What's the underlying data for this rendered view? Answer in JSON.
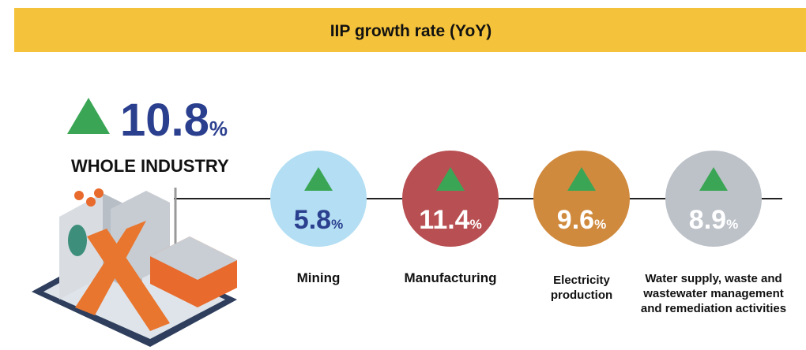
{
  "header": {
    "title": "IIP growth rate (YoY)"
  },
  "unit": "%",
  "total": {
    "value": 10.8,
    "label": "WHOLE INDUSTRY"
  },
  "sectors": [
    {
      "label": [
        "Mining"
      ],
      "value": 5.8,
      "color": "#b3def3",
      "text_color": "#2b3f8f"
    },
    {
      "label": [
        "Manufacturing"
      ],
      "value": 11.4,
      "color": "#b84f52",
      "text_color": "#ffffff"
    },
    {
      "label": [
        "Electricity",
        "production"
      ],
      "value": 9.6,
      "color": "#d08a3e",
      "text_color": "#ffffff"
    },
    {
      "label": [
        "Water supply, waste and",
        "wastewater management",
        "and remediation activities"
      ],
      "value": 8.9,
      "color": "#bdc2c9",
      "text_color": "#ffffff"
    }
  ]
}
